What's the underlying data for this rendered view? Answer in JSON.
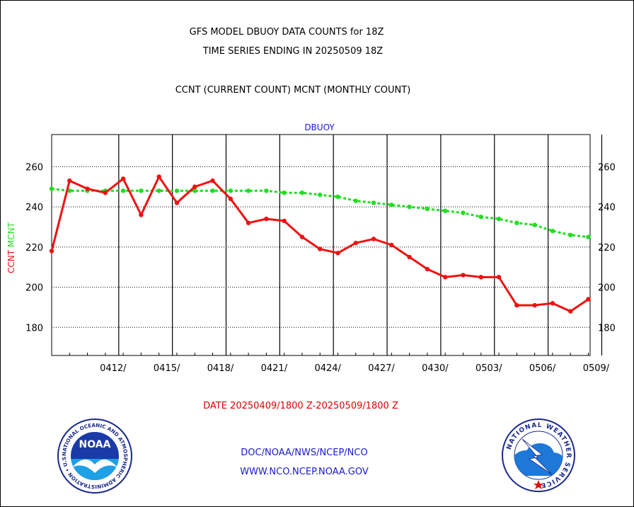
{
  "header": {
    "title": "GFS MODEL DBUOY DATA COUNTS for 18Z",
    "subtitle": "TIME SERIES ENDING IN 20250509 18Z",
    "legend_line": "CCNT (CURRENT COUNT) MCNT (MONTHLY COUNT)"
  },
  "footer": {
    "date_range": "DATE 20250409/1800 Z-20250509/1800 Z",
    "org_path": "DOC/NOAA/NWS/NCEP/NCO",
    "website": "WWW.NCO.NCEP.NOAA.GOV"
  },
  "logos": {
    "noaa_text": "NOAA",
    "noaa_ring": "NATIONAL OCEANIC AND ATMOSPHERIC ADMINISTRATION • U.S. DEPARTMENT OF COMMERCE •",
    "nws_ring": "NATIONAL WEATHER SERVICE"
  },
  "colors": {
    "ccnt": "#ee1111",
    "mcnt": "#22dd22",
    "panel_title": "#1a1ad0"
  },
  "chart_data": {
    "type": "line",
    "panel_title": "DBUOY",
    "ylabel_left": [
      "CCNT",
      "MCNT"
    ],
    "ylim": [
      166,
      276
    ],
    "yticks": [
      180,
      200,
      220,
      240,
      260
    ],
    "x_tick_labels": [
      "0412/",
      "0415/",
      "0418/",
      "0421/",
      "0424/",
      "0427/",
      "0430/",
      "0503/",
      "0506/",
      "0509/"
    ],
    "x_tick_days": [
      3,
      6,
      9,
      12,
      15,
      18,
      21,
      24,
      27,
      30
    ],
    "xlim": [
      0,
      30.1
    ],
    "grid": true,
    "series": [
      {
        "name": "CCNT",
        "color": "#ee1111",
        "x": [
          0,
          1,
          2,
          3,
          4,
          5,
          6,
          7,
          8,
          9,
          10,
          11,
          12,
          13,
          14,
          15,
          16,
          17,
          18,
          19,
          20,
          21,
          22,
          23,
          24,
          25,
          26,
          27,
          28,
          29,
          30
        ],
        "values": [
          218,
          253,
          249,
          247,
          254,
          236,
          255,
          242,
          250,
          253,
          244,
          232,
          234,
          233,
          225,
          219,
          217,
          222,
          224,
          221,
          215,
          209,
          205,
          206,
          205,
          205,
          191,
          191,
          192,
          188,
          194
        ]
      },
      {
        "name": "MCNT",
        "color": "#22dd22",
        "x": [
          0,
          1,
          2,
          3,
          4,
          5,
          6,
          7,
          8,
          9,
          10,
          11,
          12,
          13,
          14,
          15,
          16,
          17,
          18,
          19,
          20,
          21,
          22,
          23,
          24,
          25,
          26,
          27,
          28,
          29,
          30
        ],
        "values": [
          249,
          248,
          248,
          248,
          248,
          248,
          248,
          248,
          248,
          248,
          248,
          248,
          248,
          247,
          247,
          246,
          245,
          243,
          242,
          241,
          240,
          239,
          238,
          237,
          235,
          234,
          232,
          231,
          228,
          226,
          225
        ]
      }
    ]
  }
}
